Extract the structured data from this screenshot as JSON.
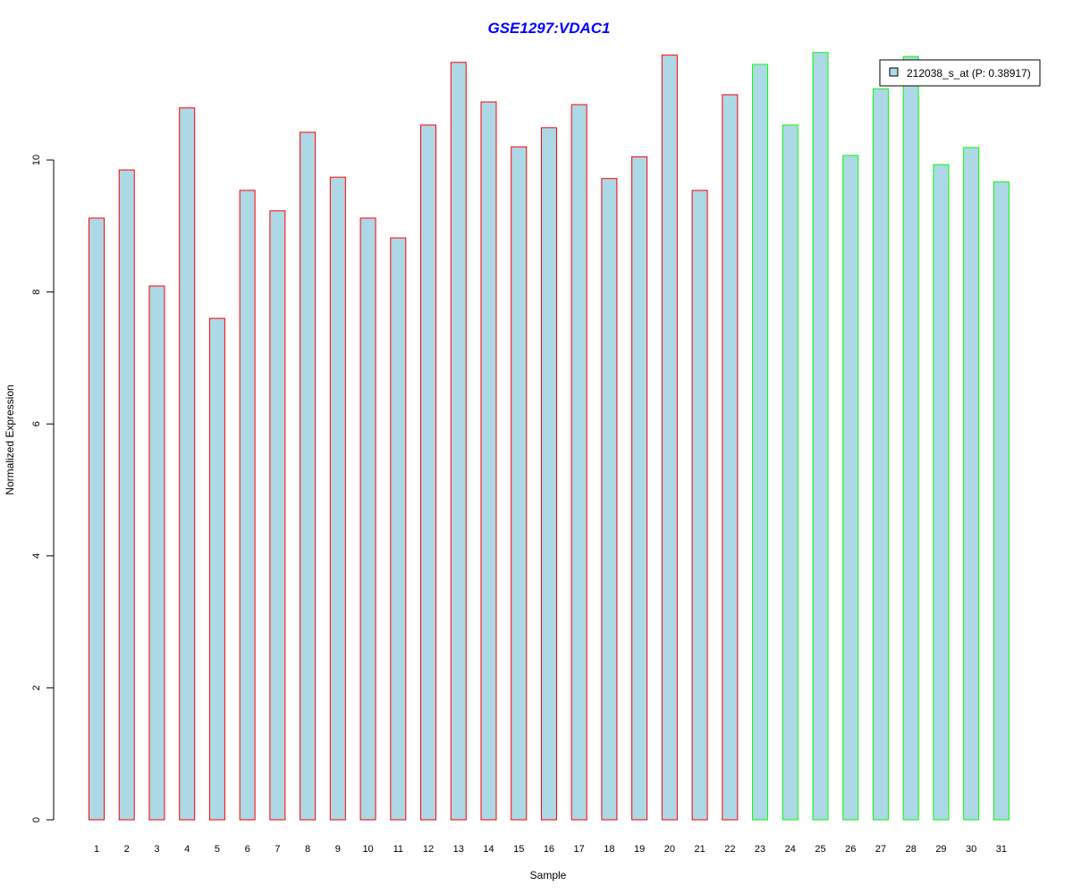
{
  "chart_data": {
    "type": "bar",
    "title": "GSE1297:VDAC1",
    "xlabel": "Sample",
    "ylabel": "Normalized Expression",
    "ylim": [
      0,
      11.7
    ],
    "yticks": [
      0,
      2,
      4,
      6,
      8,
      10
    ],
    "categories": [
      "1",
      "2",
      "3",
      "4",
      "5",
      "6",
      "7",
      "8",
      "9",
      "10",
      "11",
      "12",
      "13",
      "14",
      "15",
      "16",
      "17",
      "18",
      "19",
      "20",
      "21",
      "22",
      "23",
      "24",
      "25",
      "26",
      "27",
      "28",
      "29",
      "30",
      "31"
    ],
    "values": [
      9.12,
      9.85,
      8.09,
      10.79,
      7.6,
      9.54,
      9.23,
      10.42,
      9.74,
      9.12,
      8.82,
      10.53,
      11.48,
      10.88,
      10.2,
      10.49,
      10.84,
      9.72,
      10.05,
      11.59,
      9.54,
      10.99,
      11.45,
      10.53,
      11.63,
      10.07,
      11.08,
      11.57,
      9.93,
      10.19,
      9.67
    ],
    "groups": [
      "red",
      "red",
      "red",
      "red",
      "red",
      "red",
      "red",
      "red",
      "red",
      "red",
      "red",
      "red",
      "red",
      "red",
      "red",
      "red",
      "red",
      "red",
      "red",
      "red",
      "red",
      "red",
      "green",
      "green",
      "green",
      "green",
      "green",
      "green",
      "green",
      "green",
      "green"
    ],
    "colors": {
      "fill": "#add8e6",
      "red": "#ff0000",
      "green": "#00ff00",
      "title": "#0000ff"
    },
    "legend": {
      "label": "212038_s_at (P: 0.38917)",
      "position": "top-right"
    },
    "grid": false
  }
}
